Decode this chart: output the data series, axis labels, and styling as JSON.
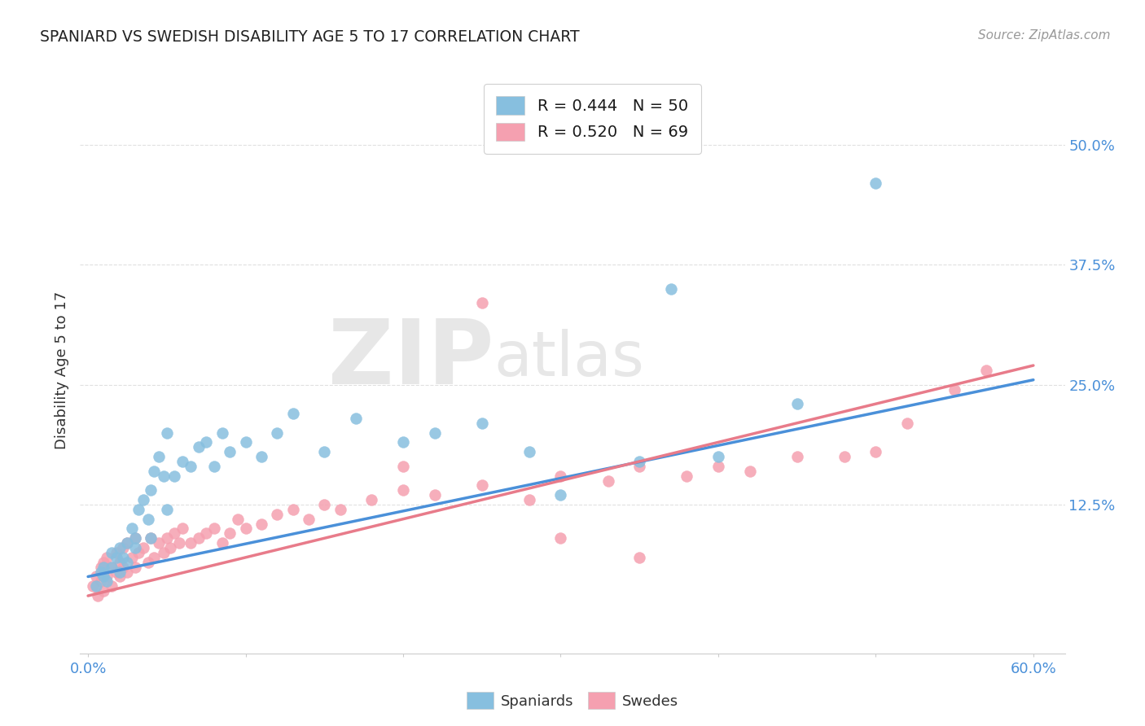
{
  "title": "SPANIARD VS SWEDISH DISABILITY AGE 5 TO 17 CORRELATION CHART",
  "source_text": "Source: ZipAtlas.com",
  "ylabel": "Disability Age 5 to 17",
  "xlim": [
    -0.005,
    0.62
  ],
  "ylim": [
    -0.03,
    0.56
  ],
  "xticks": [
    0.0,
    0.6
  ],
  "xtick_labels": [
    "0.0%",
    "60.0%"
  ],
  "ytick_labels": [
    "12.5%",
    "25.0%",
    "37.5%",
    "50.0%"
  ],
  "ytick_vals": [
    0.125,
    0.25,
    0.375,
    0.5
  ],
  "watermark_line1": "ZIP",
  "watermark_line2": "atlas",
  "legend_r1": "R = 0.444   N = 50",
  "legend_r2": "R = 0.520   N = 69",
  "spaniards_color": "#87BFDF",
  "swedes_color": "#F5A0B0",
  "trend_color_spaniards": "#4a90d9",
  "trend_color_swedes": "#e87b8a",
  "sp_trend_x0": 0.0,
  "sp_trend_y0": 0.05,
  "sp_trend_x1": 0.6,
  "sp_trend_y1": 0.255,
  "sw_trend_x0": 0.0,
  "sw_trend_y0": 0.03,
  "sw_trend_x1": 0.6,
  "sw_trend_y1": 0.27,
  "background_color": "#ffffff",
  "grid_color": "#e0e0e0",
  "title_color": "#222222",
  "axis_label_color": "#333333",
  "tick_color": "#4a90d9",
  "source_color": "#999999"
}
